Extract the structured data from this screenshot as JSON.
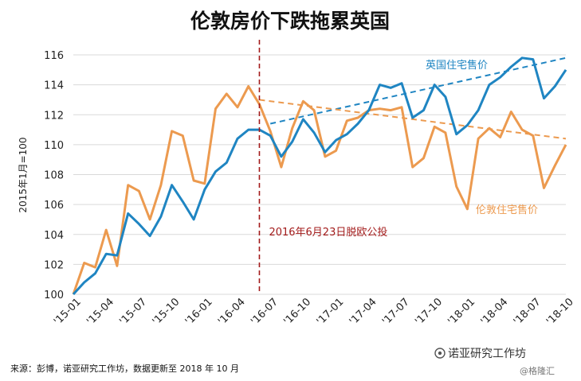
{
  "chart_data": {
    "type": "line",
    "title": "伦敦房价下跌拖累英国",
    "ylabel": "2015年1月=100",
    "ylim": [
      100,
      116
    ],
    "yticks": [
      100,
      102,
      104,
      106,
      108,
      110,
      112,
      114,
      116
    ],
    "x": [
      "'15-01",
      "'15-02",
      "'15-03",
      "'15-04",
      "'15-05",
      "'15-06",
      "'15-07",
      "'15-08",
      "'15-09",
      "'15-10",
      "'15-11",
      "'15-12",
      "'16-01",
      "'16-02",
      "'16-03",
      "'16-04",
      "'16-05",
      "'16-06",
      "'16-07",
      "'16-08",
      "'16-09",
      "'16-10",
      "'16-11",
      "'16-12",
      "'17-01",
      "'17-02",
      "'17-03",
      "'17-04",
      "'17-05",
      "'17-06",
      "'17-07",
      "'17-08",
      "'17-09",
      "'17-10",
      "'17-11",
      "'17-12",
      "'18-01",
      "'18-02",
      "'18-03",
      "'18-04",
      "'18-05",
      "'18-06",
      "'18-07",
      "'18-08",
      "'18-09",
      "'18-10"
    ],
    "xticks": [
      "'15-01",
      "'15-04",
      "'15-07",
      "'15-10",
      "'16-01",
      "'16-04",
      "'16-07",
      "'16-10",
      "'17-01",
      "'17-04",
      "'17-07",
      "'17-10",
      "'18-01",
      "'18-04",
      "'18-07",
      "'18-10"
    ],
    "series": [
      {
        "name": "英国住宅售价",
        "color": "#1f85c2",
        "values": [
          100,
          100.8,
          101.4,
          102.7,
          102.6,
          105.4,
          104.7,
          103.9,
          105.2,
          107.3,
          106.2,
          105.0,
          107.0,
          108.2,
          108.8,
          110.4,
          111.0,
          111.0,
          110.6,
          109.2,
          110.2,
          111.7,
          110.8,
          109.5,
          110.3,
          110.7,
          111.4,
          112.3,
          114.0,
          113.8,
          114.1,
          111.8,
          112.3,
          114.0,
          113.2,
          110.7,
          111.3,
          112.3,
          114.0,
          114.5,
          115.2,
          115.8,
          115.7,
          113.1,
          113.9,
          115.0
        ]
      },
      {
        "name": "伦敦住宅售价",
        "color": "#ec9a4f",
        "values": [
          100,
          102.1,
          101.8,
          104.3,
          101.9,
          107.3,
          106.9,
          105.0,
          107.3,
          110.9,
          110.6,
          107.6,
          107.4,
          112.4,
          113.4,
          112.5,
          113.9,
          112.7,
          110.9,
          108.5,
          111.1,
          112.9,
          112.3,
          109.2,
          109.6,
          111.6,
          111.8,
          112.3,
          112.4,
          112.3,
          112.5,
          108.5,
          109.1,
          111.2,
          110.8,
          107.2,
          105.7,
          110.4,
          111.1,
          110.5,
          112.2,
          111.0,
          110.6,
          107.1,
          108.6,
          110.0
        ]
      }
    ],
    "trendlines": [
      {
        "series": "英国住宅售价",
        "color": "#1f85c2",
        "from": {
          "x": "'16-07",
          "y": 111.4
        },
        "to": {
          "x": "'18-10",
          "y": 115.8
        }
      },
      {
        "series": "伦敦住宅售价",
        "color": "#ec9a4f",
        "from": {
          "x": "'16-06",
          "y": 113.0
        },
        "to": {
          "x": "'18-10",
          "y": 110.4
        }
      }
    ],
    "event_line": {
      "x": "'16-06",
      "label": "2016年6月23日脱欧公投",
      "color": "#a31b1b"
    },
    "grid": true,
    "legend": "inline-labels"
  },
  "source": "来源：彭博，诺亚研究工作坊，数据更新至 2018 年 10 月",
  "watermark": {
    "main": "诺亚研究工作坊",
    "sub": "@格隆汇"
  }
}
